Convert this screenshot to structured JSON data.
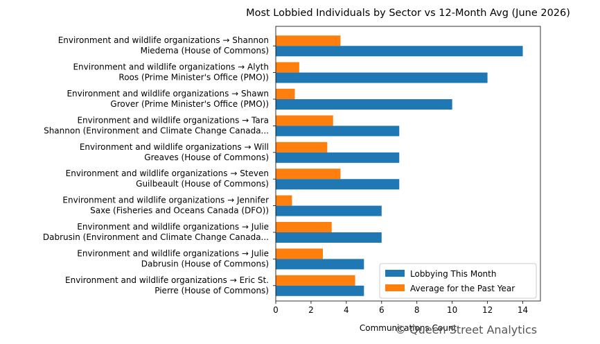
{
  "chart_data": {
    "type": "bar",
    "orientation": "horizontal",
    "title": "Most Lobbied Individuals by Sector vs 12-Month Avg (June 2026)",
    "xlabel": "Communications Count",
    "ylabel": "",
    "xlim": [
      0,
      15
    ],
    "xticks": [
      0,
      2,
      4,
      6,
      8,
      10,
      12,
      14
    ],
    "grid": false,
    "legend_position": "lower-right",
    "categories": [
      [
        "Environment and wildlife organizations → Shannon",
        "Miedema (House of Commons)"
      ],
      [
        "Environment and wildlife organizations → Alyth",
        "Roos (Prime Minister's Office (PMO))"
      ],
      [
        "Environment and wildlife organizations → Shawn",
        "Grover (Prime Minister's Office (PMO))"
      ],
      [
        "Environment and wildlife organizations → Tara",
        "Shannon (Environment and Climate Change Canada..."
      ],
      [
        "Environment and wildlife organizations → Will",
        "Greaves (House of Commons)"
      ],
      [
        "Environment and wildlife organizations → Steven",
        "Guilbeault (House of Commons)"
      ],
      [
        "Environment and wildlife organizations → Jennifer",
        "Saxe (Fisheries and Oceans Canada (DFO))"
      ],
      [
        "Environment and wildlife organizations → Julie",
        "Dabrusin (Environment and Climate Change Canada..."
      ],
      [
        "Environment and wildlife organizations → Julie",
        "Dabrusin (House of Commons)"
      ],
      [
        "Environment and wildlife organizations → Eric St.",
        "Pierre (House of Commons)"
      ]
    ],
    "series": [
      {
        "name": "Lobbying This Month",
        "color": "#1f77b4",
        "values": [
          14,
          12,
          10,
          7,
          7,
          7,
          6,
          6,
          5,
          5
        ]
      },
      {
        "name": "Average for the Past Year",
        "color": "#ff7f0e",
        "values": [
          3.67,
          1.33,
          1.08,
          3.25,
          2.92,
          3.67,
          0.92,
          3.17,
          2.67,
          4.5
        ]
      }
    ]
  },
  "watermark": "© Queen Street Analytics"
}
